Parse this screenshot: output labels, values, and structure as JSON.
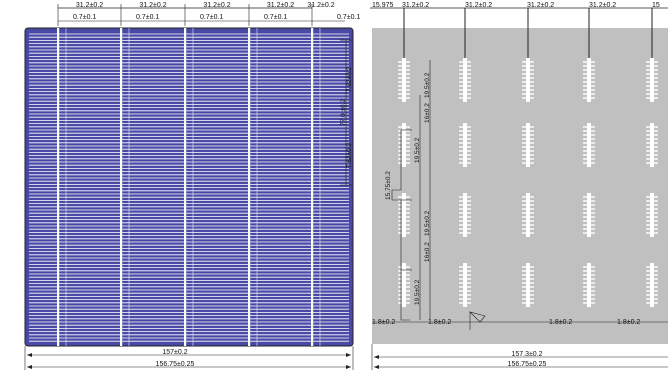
{
  "front": {
    "top_pitch_labels": [
      "31.2±0.2",
      "31.2±0.2",
      "31.2±0.2",
      "31.2±0.2",
      "31.2±0.2"
    ],
    "busbar_width_labels": [
      "0.7±0.1",
      "0.7±0.1",
      "0.7±0.1",
      "0.7±0.1",
      "0.7±0.1"
    ],
    "right_dims": [
      "7.62±0.2",
      "77.0 ±0.2",
      "7.62±0.2"
    ],
    "bottom_dims": [
      "157±0.2",
      "156.75±0.25"
    ],
    "colors": {
      "cell": "#4a4aa6",
      "finger": "#ffffff",
      "busbar": "#ffffff"
    }
  },
  "back": {
    "top_pitch_labels": [
      "15.975",
      "31.2±0.2",
      "31.2±0.2",
      "31.2±0.2",
      "31.2±0.2",
      "15"
    ],
    "vertical_dims": [
      "19.5±0.2",
      "16±0.2",
      "19.5±0.2",
      "15.75±0.2",
      "19.5±0.2",
      "16±0.2",
      "19.5±0.2"
    ],
    "pad_width_labels": [
      "1.8±0.2",
      "1.8±0.2",
      "1.8±0.2",
      "1.8±0.2",
      "1.8±0.2"
    ],
    "bottom_dims": [
      "157.3±0.2",
      "156.75±0.25"
    ],
    "colors": {
      "cell": "#c0c0c0",
      "pad": "#ffffff"
    }
  }
}
